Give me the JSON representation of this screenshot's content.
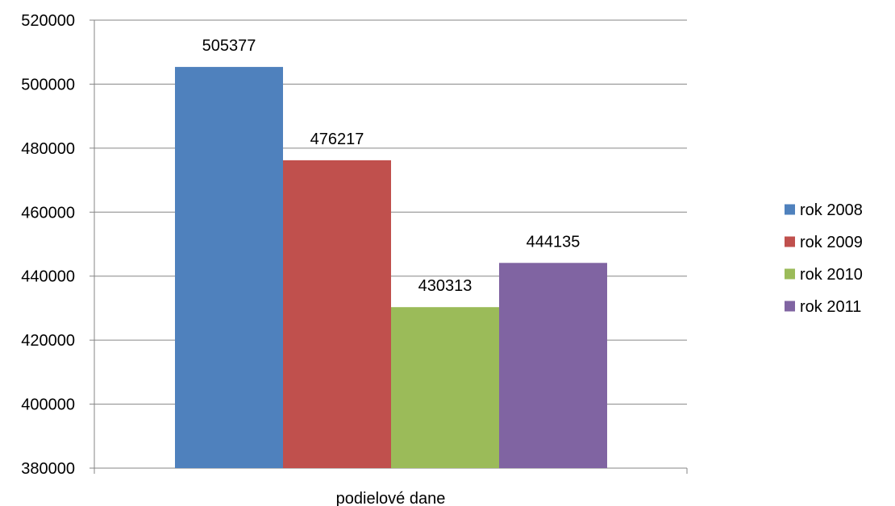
{
  "chart_data": {
    "type": "bar",
    "categories": [
      "podielové dane"
    ],
    "series": [
      {
        "name": "rok 2008",
        "values": [
          505377
        ],
        "color": "#4F81BD"
      },
      {
        "name": "rok 2009",
        "values": [
          476217
        ],
        "color": "#C0504D"
      },
      {
        "name": "rok 2010",
        "values": [
          430313
        ],
        "color": "#9BBB59"
      },
      {
        "name": "rok 2011",
        "values": [
          444135
        ],
        "color": "#8064A2"
      }
    ],
    "ylim": [
      380000,
      520000
    ],
    "yticks": [
      "380000",
      "400000",
      "420000",
      "440000",
      "460000",
      "480000",
      "500000",
      "520000"
    ],
    "data_labels": [
      "505377",
      "476217",
      "430313",
      "444135"
    ],
    "grid": true,
    "legend_position": "right",
    "gridline_color": "#868686"
  }
}
